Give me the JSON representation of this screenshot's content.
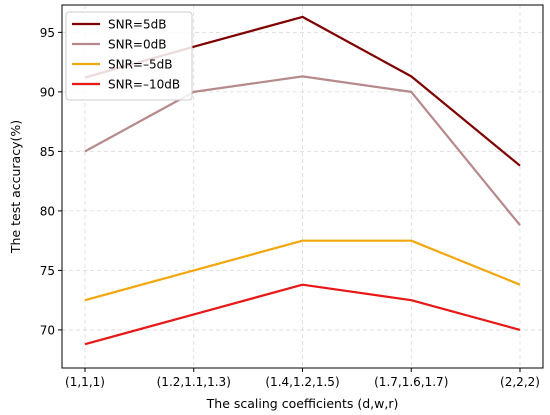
{
  "chart_data": {
    "type": "line",
    "categories": [
      "(1,1,1)",
      "(1.2,1.1,1.3)",
      "(1.4,1.2,1.5)",
      "(1.7,1.6,1.7)",
      "(2,2,2)"
    ],
    "xlabel": "The scaling coefficients (d,w,r)",
    "ylabel": "The test accuracy(%)",
    "ylim": [
      66.8,
      97.3
    ],
    "yticks": [
      70,
      75,
      80,
      85,
      90,
      95
    ],
    "grid": true,
    "legend_position": "top-left",
    "series": [
      {
        "name": "SNR=5dB",
        "color": "#7f0000",
        "values": [
          91.2,
          93.8,
          96.3,
          91.3,
          83.8
        ]
      },
      {
        "name": "SNR=0dB",
        "color": "#b68a8a",
        "values": [
          85.0,
          90.0,
          91.3,
          90.0,
          78.8
        ]
      },
      {
        "name": "SNR=–5dB",
        "color": "#f3a70f",
        "values": [
          72.5,
          75.0,
          77.5,
          77.5,
          73.8
        ]
      },
      {
        "name": "SNR=–10dB",
        "color": "#e81818",
        "values": [
          68.8,
          71.3,
          73.8,
          72.5,
          70.0
        ]
      }
    ]
  }
}
